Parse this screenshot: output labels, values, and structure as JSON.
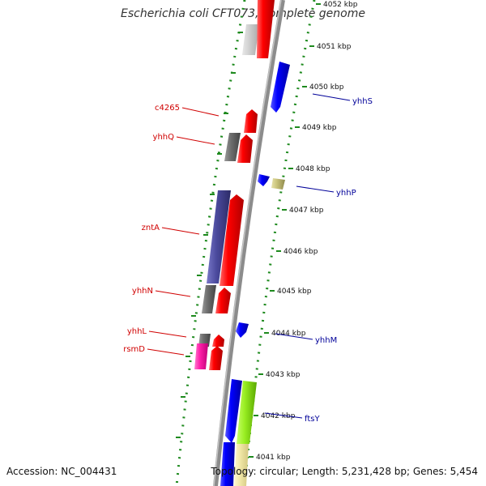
{
  "title": "Escherichia coli CFT073, complete genome",
  "footer": {
    "accession": "Accession: NC_004431",
    "topology": "Topology: circular; Length: 5,231,428 bp; Genes: 5,454"
  },
  "colors": {
    "backbone": "#8c8c8c",
    "tick_dots": "#1e8a1e",
    "forward_gene": "#f00000",
    "reverse_gene": "#0000ee",
    "left_label": "#d00000",
    "right_label": "#000099"
  },
  "ruler": [
    {
      "label": "4052 kbp",
      "kbp": 4052
    },
    {
      "label": "4051 kbp",
      "kbp": 4051
    },
    {
      "label": "4050 kbp",
      "kbp": 4050
    },
    {
      "label": "4049 kbp",
      "kbp": 4049
    },
    {
      "label": "4048 kbp",
      "kbp": 4048
    },
    {
      "label": "4047 kbp",
      "kbp": 4047
    },
    {
      "label": "4046 kbp",
      "kbp": 4046
    },
    {
      "label": "4045 kbp",
      "kbp": 4045
    },
    {
      "label": "4044 kbp",
      "kbp": 4044
    },
    {
      "label": "4043 kbp",
      "kbp": 4043
    },
    {
      "label": "4042 kbp",
      "kbp": 4042
    },
    {
      "label": "4041 kbp",
      "kbp": 4041
    }
  ],
  "gene_labels": [
    {
      "name": "c4265",
      "side": "left"
    },
    {
      "name": "yhhQ",
      "side": "left"
    },
    {
      "name": "zntA",
      "side": "left"
    },
    {
      "name": "yhhN",
      "side": "left"
    },
    {
      "name": "yhhL",
      "side": "left"
    },
    {
      "name": "rsmD",
      "side": "left"
    },
    {
      "name": "yhhS",
      "side": "right"
    },
    {
      "name": "yhhP",
      "side": "right"
    },
    {
      "name": "yhhM",
      "side": "right"
    },
    {
      "name": "ftsY",
      "side": "right"
    }
  ]
}
